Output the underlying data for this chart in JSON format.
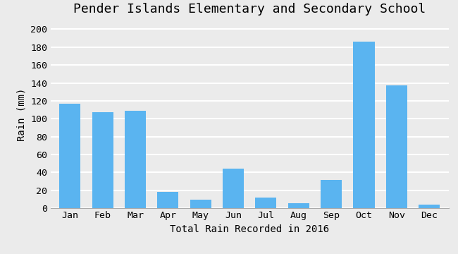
{
  "title": "Pender Islands Elementary and Secondary School",
  "xlabel": "Total Rain Recorded in 2016",
  "ylabel": "Rain (mm)",
  "months": [
    "Jan",
    "Feb",
    "Mar",
    "Apr",
    "May",
    "Jun",
    "Jul",
    "Aug",
    "Sep",
    "Oct",
    "Nov",
    "Dec"
  ],
  "values": [
    117,
    107,
    109,
    18,
    10,
    44,
    12,
    6,
    32,
    186,
    137,
    4
  ],
  "bar_color": "#5ab4f0",
  "bg_color": "#ebebeb",
  "plot_bg_color": "#ebebeb",
  "ylim": [
    0,
    210
  ],
  "yticks": [
    0,
    20,
    40,
    60,
    80,
    100,
    120,
    140,
    160,
    180,
    200
  ],
  "title_fontsize": 13,
  "label_fontsize": 10,
  "tick_fontsize": 9.5
}
